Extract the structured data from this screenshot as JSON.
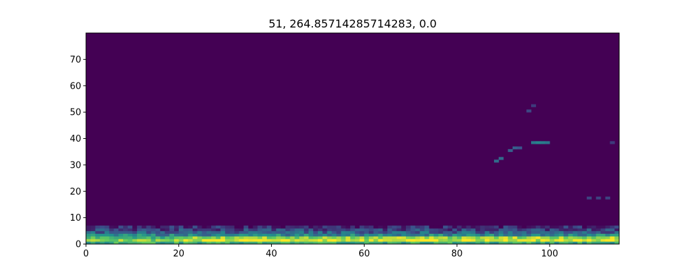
{
  "chart_data": {
    "type": "heatmap",
    "title": "51, 264.85714285714283, 0.0",
    "xlabel": "",
    "ylabel": "",
    "xlim": [
      0,
      115
    ],
    "ylim": [
      0,
      80
    ],
    "x_ticks": [
      0,
      20,
      40,
      60,
      80,
      100
    ],
    "y_ticks": [
      0,
      10,
      20,
      30,
      40,
      50,
      60,
      70
    ],
    "grid": false,
    "colormap": "viridis",
    "value_range": [
      0,
      1
    ],
    "background_color": "#440154",
    "low_bands": [
      {
        "y": 0,
        "x_start": 0,
        "x_end": 115,
        "value": 0.62
      },
      {
        "y": 1,
        "x_start": 0,
        "x_end": 20,
        "value": 0.78
      },
      {
        "y": 1,
        "x_start": 20,
        "x_end": 82,
        "value": 0.92
      },
      {
        "y": 1,
        "x_start": 82,
        "x_end": 115,
        "value": 0.94
      },
      {
        "y": 2,
        "x_start": 0,
        "x_end": 20,
        "value": 0.66
      },
      {
        "y": 2,
        "x_start": 20,
        "x_end": 82,
        "value": 0.82
      },
      {
        "y": 2,
        "x_start": 82,
        "x_end": 115,
        "value": 0.84
      },
      {
        "y": 3,
        "x_start": 0,
        "x_end": 115,
        "value": 0.45
      },
      {
        "y": 4,
        "x_start": 0,
        "x_end": 115,
        "value": 0.3
      },
      {
        "y": 5,
        "x_start": 0,
        "x_end": 115,
        "value": 0.2
      },
      {
        "y": 6,
        "x_start": 0,
        "x_end": 115,
        "value": 0.12
      }
    ],
    "sparse_cells": [
      {
        "x": 88,
        "y": 31,
        "value": 0.35
      },
      {
        "x": 89,
        "y": 32,
        "value": 0.35
      },
      {
        "x": 91,
        "y": 35,
        "value": 0.3
      },
      {
        "x": 92,
        "y": 36,
        "value": 0.3
      },
      {
        "x": 93,
        "y": 36,
        "value": 0.25
      },
      {
        "x": 96,
        "y": 38,
        "value": 0.4
      },
      {
        "x": 97,
        "y": 38,
        "value": 0.45
      },
      {
        "x": 98,
        "y": 38,
        "value": 0.42
      },
      {
        "x": 99,
        "y": 38,
        "value": 0.38
      },
      {
        "x": 95,
        "y": 50,
        "value": 0.22
      },
      {
        "x": 96,
        "y": 52,
        "value": 0.18
      },
      {
        "x": 108,
        "y": 17,
        "value": 0.2
      },
      {
        "x": 110,
        "y": 17,
        "value": 0.2
      },
      {
        "x": 112,
        "y": 17,
        "value": 0.2
      },
      {
        "x": 113,
        "y": 38,
        "value": 0.18
      }
    ]
  }
}
